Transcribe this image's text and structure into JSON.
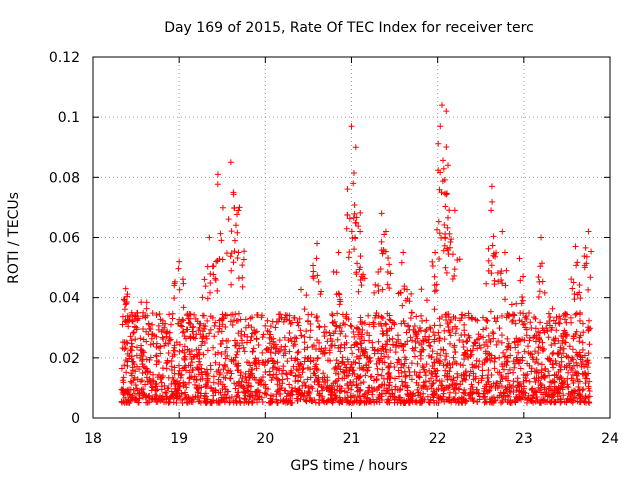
{
  "chart_data": {
    "type": "scatter",
    "title": "Day 169 of 2015, Rate Of TEC Index for receiver terc",
    "xlabel": "GPS time / hours",
    "ylabel": "ROTI / TECUs",
    "xlim": [
      18,
      24
    ],
    "ylim": [
      0,
      0.12
    ],
    "x_ticks": [
      "18",
      "19",
      "20",
      "21",
      "22",
      "23",
      "24"
    ],
    "y_ticks": [
      "0",
      "0.02",
      "0.04",
      "0.06",
      "0.08",
      "0.1",
      "0.12"
    ],
    "grid": true,
    "marker": "+",
    "marker_color": "#ff0000",
    "series": [
      {
        "name": "ROTI",
        "x_range": [
          18.33,
          23.77
        ],
        "typical_range": [
          0.005,
          0.035
        ],
        "peaks": [
          {
            "x": 18.38,
            "y": 0.043
          },
          {
            "x": 18.45,
            "y": 0.035
          },
          {
            "x": 19.0,
            "y": 0.052
          },
          {
            "x": 19.35,
            "y": 0.06
          },
          {
            "x": 19.45,
            "y": 0.081
          },
          {
            "x": 19.6,
            "y": 0.085
          },
          {
            "x": 19.63,
            "y": 0.075
          },
          {
            "x": 19.7,
            "y": 0.07
          },
          {
            "x": 20.6,
            "y": 0.058
          },
          {
            "x": 20.85,
            "y": 0.055
          },
          {
            "x": 21.0,
            "y": 0.097
          },
          {
            "x": 21.05,
            "y": 0.09
          },
          {
            "x": 21.02,
            "y": 0.078
          },
          {
            "x": 21.1,
            "y": 0.062
          },
          {
            "x": 21.35,
            "y": 0.068
          },
          {
            "x": 21.4,
            "y": 0.062
          },
          {
            "x": 21.6,
            "y": 0.055
          },
          {
            "x": 21.97,
            "y": 0.055
          },
          {
            "x": 22.05,
            "y": 0.104
          },
          {
            "x": 22.1,
            "y": 0.102
          },
          {
            "x": 22.03,
            "y": 0.097
          },
          {
            "x": 22.12,
            "y": 0.084
          },
          {
            "x": 22.2,
            "y": 0.069
          },
          {
            "x": 22.63,
            "y": 0.077
          },
          {
            "x": 22.62,
            "y": 0.069
          },
          {
            "x": 22.75,
            "y": 0.062
          },
          {
            "x": 22.95,
            "y": 0.053
          },
          {
            "x": 23.2,
            "y": 0.06
          },
          {
            "x": 23.6,
            "y": 0.057
          },
          {
            "x": 23.75,
            "y": 0.062
          }
        ]
      }
    ]
  }
}
